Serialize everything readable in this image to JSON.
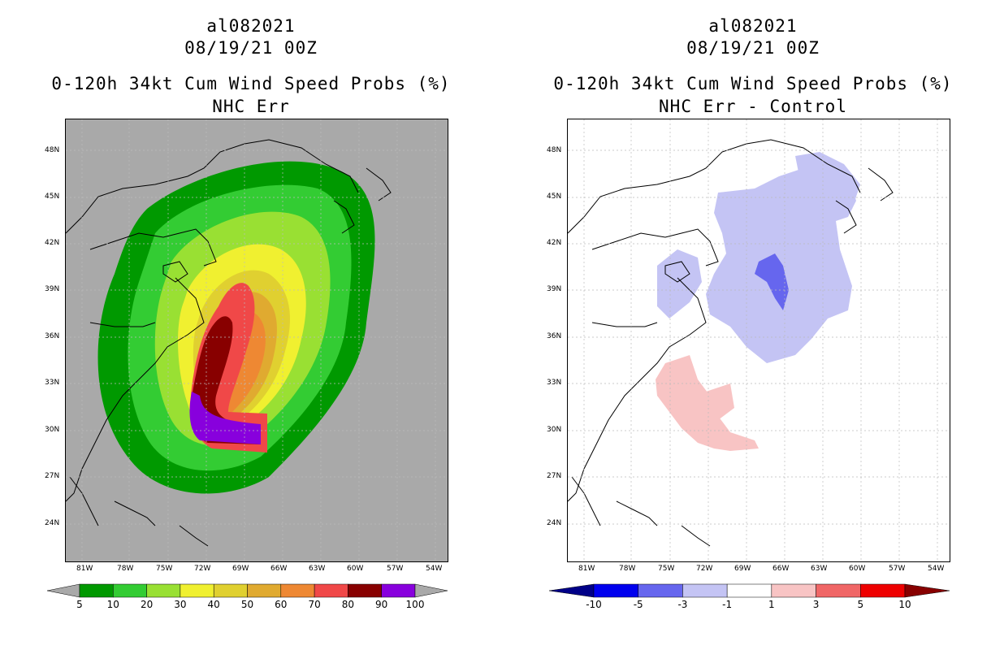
{
  "left": {
    "line1": "al082021",
    "line2": "08/19/21 00Z",
    "line3": "0-120h 34kt Cum Wind Speed Probs (%)",
    "line4": "NHC Err",
    "bg": "#a9a9a9",
    "colorbar": {
      "labels": [
        "5",
        "10",
        "20",
        "30",
        "40",
        "50",
        "60",
        "70",
        "80",
        "90",
        "100"
      ],
      "colors": [
        "#009900",
        "#33cc33",
        "#99e033",
        "#f0f030",
        "#e0d030",
        "#e0aa30",
        "#ee8833",
        "#f04848",
        "#880000",
        "#8800dd"
      ],
      "under": "#a9a9a9",
      "over": "#a9a9a9"
    }
  },
  "right": {
    "line1": "al082021",
    "line2": "08/19/21 00Z",
    "line3": "0-120h 34kt Cum Wind Speed Probs (%)",
    "line4": "NHC Err - Control",
    "bg": "#ffffff",
    "colorbar": {
      "labels": [
        "-10",
        "-5",
        "-3",
        "-1",
        "1",
        "3",
        "5",
        "10"
      ],
      "colors": [
        "#0000ee",
        "#6666ee",
        "#c4c4f4",
        "#ffffff",
        "#f8c4c4",
        "#f06666",
        "#ee0000"
      ],
      "under": "#000088",
      "over": "#880000"
    }
  },
  "axes": {
    "lat_labels": [
      "48N",
      "45N",
      "42N",
      "39N",
      "36N",
      "33N",
      "30N",
      "27N",
      "24N"
    ],
    "lon_labels": [
      "81W",
      "78W",
      "75W",
      "72W",
      "69W",
      "66W",
      "63W",
      "60W",
      "57W",
      "54W"
    ]
  }
}
